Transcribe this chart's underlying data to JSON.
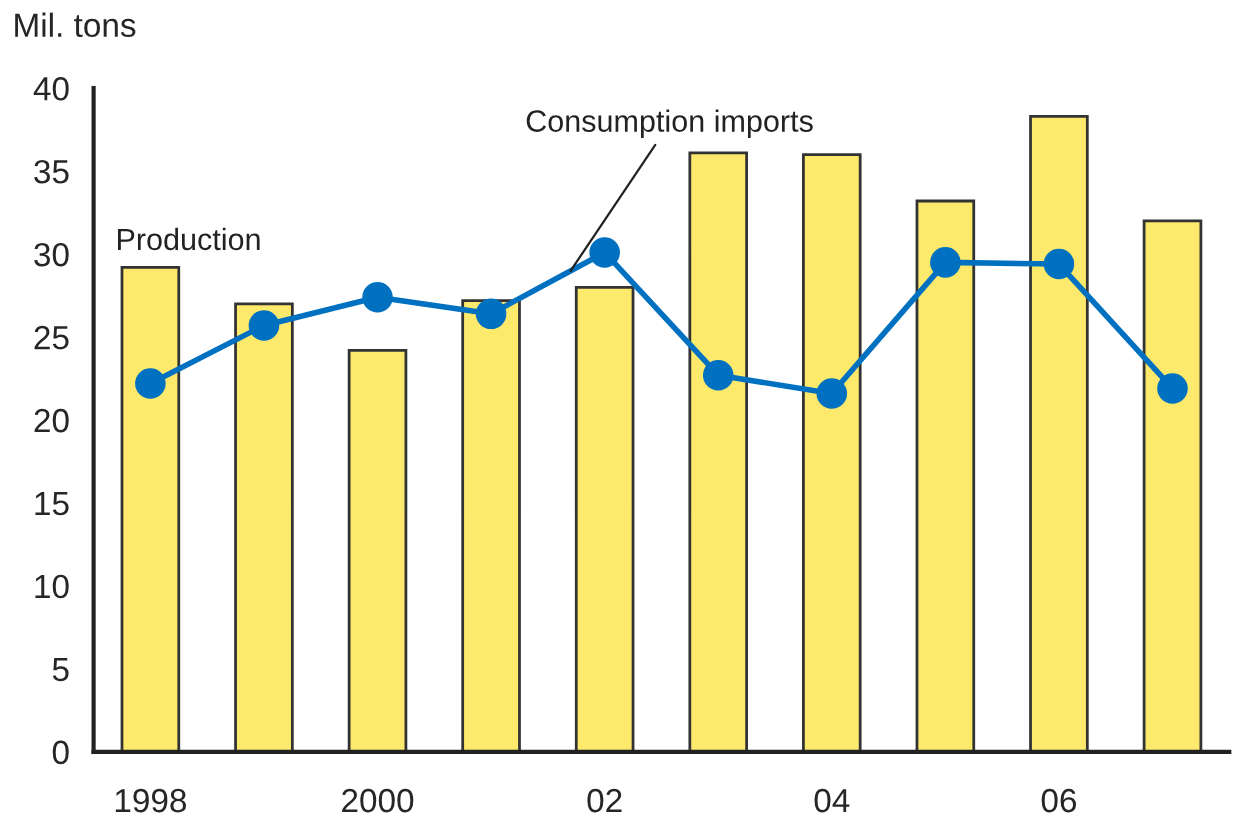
{
  "chart_data": {
    "type": "bar",
    "ylabel": "Mil. tons",
    "categories": [
      "1998",
      null,
      "2000",
      null,
      "02",
      null,
      "04",
      null,
      "06",
      null
    ],
    "series": [
      {
        "name": "Production",
        "color": "#fde96c",
        "values": [
          29.2,
          27.0,
          24.2,
          27.2,
          28.0,
          36.1,
          36.0,
          33.2,
          38.3,
          32.0
        ]
      },
      {
        "name": "Consumption imports",
        "type": "line",
        "color": "#0070c0",
        "marker": "circle",
        "values": [
          22.2,
          25.7,
          27.4,
          26.4,
          30.1,
          22.7,
          21.6,
          29.5,
          29.4,
          21.9
        ]
      }
    ],
    "ylim": [
      0,
      40
    ],
    "yticks": [
      0,
      5,
      10,
      15,
      20,
      25,
      30,
      35,
      40
    ],
    "grid": false,
    "legend": false
  }
}
